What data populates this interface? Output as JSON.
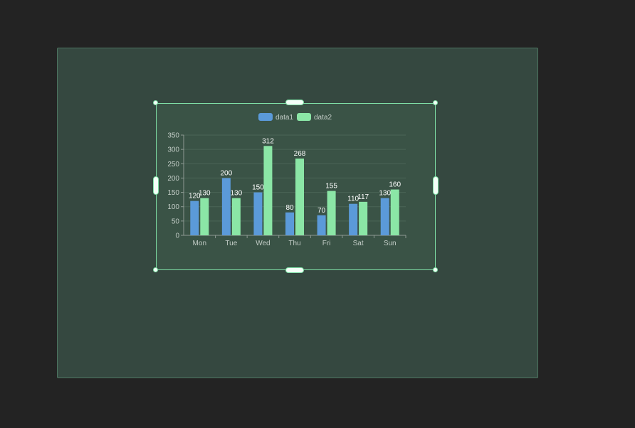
{
  "colors": {
    "data1": "#5b9ad9",
    "data2": "#8be6a6"
  },
  "chart_data": {
    "type": "bar",
    "categories": [
      "Mon",
      "Tue",
      "Wed",
      "Thu",
      "Fri",
      "Sat",
      "Sun"
    ],
    "series": [
      {
        "name": "data1",
        "values": [
          120,
          200,
          150,
          80,
          70,
          110,
          130
        ]
      },
      {
        "name": "data2",
        "values": [
          130,
          130,
          312,
          268,
          155,
          117,
          160
        ]
      }
    ],
    "ylim": [
      0,
      350
    ],
    "yticks": [
      0,
      50,
      100,
      150,
      200,
      250,
      300,
      350
    ],
    "grid": true,
    "legend": "top-center",
    "title": "",
    "xlabel": "",
    "ylabel": ""
  }
}
